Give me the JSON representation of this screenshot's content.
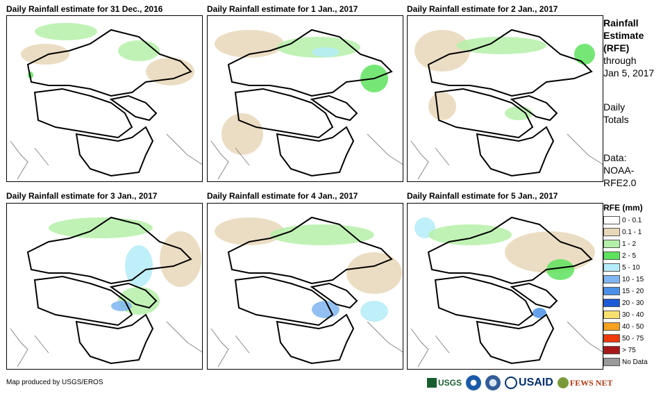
{
  "panels": [
    {
      "title": "Daily Rainfall estimate for 31 Dec., 2016"
    },
    {
      "title": "Daily Rainfall estimate for 1 Jan., 2017"
    },
    {
      "title": "Daily Rainfall estimate for 2 Jan., 2017"
    },
    {
      "title": "Daily Rainfall estimate for 3 Jan., 2017"
    },
    {
      "title": "Daily Rainfall estimate for 4 Jan., 2017"
    },
    {
      "title": "Daily Rainfall estimate for 5 Jan., 2017"
    }
  ],
  "side": {
    "line1": "Rainfall",
    "line2": "Estimate",
    "line3": "(RFE)",
    "line4": "through",
    "line5": "Jan 5, 2017",
    "line6": "Daily",
    "line7": "Totals",
    "line8": "Data:",
    "line9": "NOAA-",
    "line10": "RFE2.0"
  },
  "legend": {
    "title": "RFE (mm)",
    "items": [
      {
        "label": "0 - 0.1",
        "color": "#ffffff"
      },
      {
        "label": "0.1 - 1",
        "color": "#e8d7b8"
      },
      {
        "label": "1 - 2",
        "color": "#b5f0a8"
      },
      {
        "label": "2 - 5",
        "color": "#5ee35e"
      },
      {
        "label": "5 - 10",
        "color": "#b4ecf8"
      },
      {
        "label": "10 - 15",
        "color": "#7fb5f0"
      },
      {
        "label": "15 - 20",
        "color": "#4a90e8"
      },
      {
        "label": "20 - 30",
        "color": "#1c5ad8"
      },
      {
        "label": "30 - 40",
        "color": "#f8e070"
      },
      {
        "label": "40 - 50",
        "color": "#f8a020"
      },
      {
        "label": "50 - 75",
        "color": "#f03a0a"
      },
      {
        "label": "> 75",
        "color": "#a81818"
      },
      {
        "label": "No Data",
        "color": "#999999"
      }
    ]
  },
  "credit": "Map produced by USGS/EROS",
  "logos": {
    "usgs": "USGS",
    "usaid": "USAID",
    "fewsnet": "FEWS NET"
  }
}
